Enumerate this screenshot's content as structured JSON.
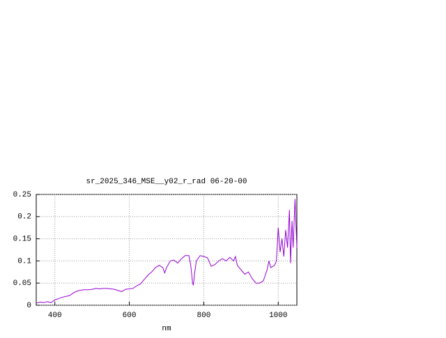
{
  "chart_data": {
    "type": "line",
    "title": "sr_2025_346_MSE__y02_r_rad 06-20-00",
    "x_label": "nm",
    "x": [
      350,
      360,
      370,
      380,
      390,
      400,
      410,
      420,
      430,
      440,
      450,
      460,
      470,
      480,
      490,
      500,
      510,
      520,
      530,
      540,
      550,
      560,
      570,
      580,
      590,
      600,
      610,
      620,
      630,
      640,
      650,
      660,
      670,
      680,
      690,
      695,
      700,
      710,
      720,
      730,
      740,
      750,
      760,
      765,
      770,
      772,
      775,
      780,
      790,
      800,
      810,
      820,
      830,
      840,
      850,
      860,
      870,
      880,
      885,
      890,
      900,
      910,
      920,
      930,
      940,
      950,
      960,
      970,
      975,
      980,
      990,
      995,
      1000,
      1005,
      1010,
      1015,
      1020,
      1025,
      1030,
      1033,
      1037,
      1040,
      1045,
      1050
    ],
    "values": [
      0.005,
      0.007,
      0.006,
      0.008,
      0.006,
      0.012,
      0.015,
      0.018,
      0.02,
      0.022,
      0.028,
      0.032,
      0.034,
      0.035,
      0.035,
      0.036,
      0.038,
      0.037,
      0.038,
      0.038,
      0.037,
      0.036,
      0.033,
      0.031,
      0.036,
      0.037,
      0.038,
      0.044,
      0.048,
      0.058,
      0.068,
      0.075,
      0.085,
      0.09,
      0.085,
      0.073,
      0.085,
      0.1,
      0.102,
      0.095,
      0.105,
      0.112,
      0.112,
      0.09,
      0.05,
      0.045,
      0.07,
      0.1,
      0.112,
      0.11,
      0.107,
      0.088,
      0.092,
      0.1,
      0.105,
      0.1,
      0.108,
      0.1,
      0.11,
      0.09,
      0.08,
      0.07,
      0.075,
      0.06,
      0.05,
      0.05,
      0.055,
      0.08,
      0.1,
      0.085,
      0.09,
      0.1,
      0.175,
      0.12,
      0.15,
      0.11,
      0.17,
      0.13,
      0.215,
      0.095,
      0.19,
      0.13,
      0.24,
      0.13
    ],
    "color": "#9400d3",
    "xlim": [
      350,
      1050
    ],
    "xticks": [
      400,
      600,
      800,
      1000
    ],
    "ylim": [
      0,
      0.25
    ],
    "yticks": [
      0,
      0.05,
      0.1,
      0.15,
      0.2,
      0.25
    ],
    "grid": true
  }
}
